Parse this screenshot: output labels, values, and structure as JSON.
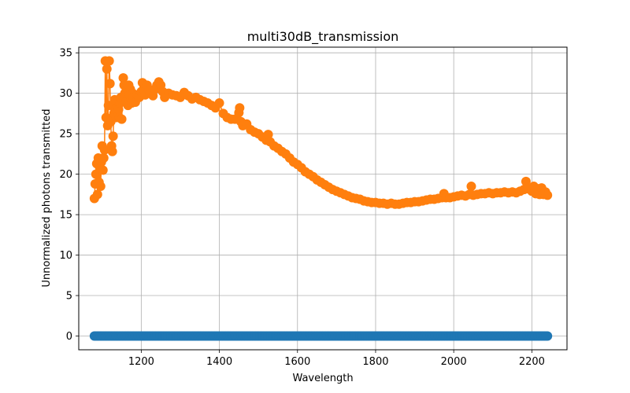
{
  "chart_data": {
    "type": "scatter",
    "title": "multi30dB_transmission",
    "xlabel": "Wavelength",
    "ylabel": "Unnormalized photons transmitted",
    "xlim": [
      1040,
      2290
    ],
    "ylim": [
      -1.7,
      35.7
    ],
    "xticks": [
      1200,
      1400,
      1600,
      1800,
      2000,
      2200
    ],
    "yticks": [
      0,
      5,
      10,
      15,
      20,
      25,
      30,
      35
    ],
    "grid": true,
    "colors": {
      "series_0": "#1f77b4",
      "series_1": "#ff7f0e"
    },
    "series": [
      {
        "x_range": [
          1080,
          2240
        ],
        "value": 0,
        "markers": true,
        "line": true
      },
      {
        "markers": true,
        "line": true,
        "points": [
          [
            1080,
            17.0
          ],
          [
            1082,
            18.8
          ],
          [
            1084,
            20.0
          ],
          [
            1086,
            21.3
          ],
          [
            1088,
            17.5
          ],
          [
            1090,
            22.0
          ],
          [
            1092,
            19.0
          ],
          [
            1094,
            20.7
          ],
          [
            1096,
            18.5
          ],
          [
            1098,
            21.5
          ],
          [
            1100,
            23.5
          ],
          [
            1102,
            20.5
          ],
          [
            1104,
            22.0
          ],
          [
            1106,
            23.0
          ],
          [
            1108,
            34.0
          ],
          [
            1110,
            27.0
          ],
          [
            1112,
            33.0
          ],
          [
            1114,
            26.0
          ],
          [
            1116,
            28.5
          ],
          [
            1118,
            34.0
          ],
          [
            1120,
            31.2
          ],
          [
            1122,
            26.5
          ],
          [
            1124,
            23.5
          ],
          [
            1126,
            22.8
          ],
          [
            1128,
            24.7
          ],
          [
            1130,
            27.5
          ],
          [
            1132,
            29.2
          ],
          [
            1134,
            28.0
          ],
          [
            1136,
            27.0
          ],
          [
            1138,
            28.5
          ],
          [
            1140,
            29.0
          ],
          [
            1142,
            28.0
          ],
          [
            1144,
            27.0
          ],
          [
            1146,
            28.8
          ],
          [
            1148,
            29.5
          ],
          [
            1150,
            26.8
          ],
          [
            1152,
            29.0
          ],
          [
            1154,
            31.9
          ],
          [
            1156,
            31.0
          ],
          [
            1158,
            30.0
          ],
          [
            1160,
            29.5
          ],
          [
            1162,
            29.0
          ],
          [
            1164,
            30.5
          ],
          [
            1166,
            28.5
          ],
          [
            1168,
            31.0
          ],
          [
            1170,
            29.8
          ],
          [
            1172,
            30.5
          ],
          [
            1174,
            29.2
          ],
          [
            1176,
            28.8
          ],
          [
            1178,
            30.0
          ],
          [
            1180,
            29.5
          ],
          [
            1185,
            28.9
          ],
          [
            1190,
            29.8
          ],
          [
            1195,
            29.5
          ],
          [
            1200,
            30.2
          ],
          [
            1203,
            31.3
          ],
          [
            1206,
            30.5
          ],
          [
            1210,
            29.8
          ],
          [
            1215,
            31.0
          ],
          [
            1220,
            30.4
          ],
          [
            1225,
            30.0
          ],
          [
            1230,
            29.7
          ],
          [
            1235,
            30.5
          ],
          [
            1240,
            31.0
          ],
          [
            1245,
            31.4
          ],
          [
            1250,
            31.0
          ],
          [
            1255,
            30.2
          ],
          [
            1260,
            29.5
          ],
          [
            1270,
            30.0
          ],
          [
            1280,
            29.8
          ],
          [
            1290,
            29.7
          ],
          [
            1300,
            29.5
          ],
          [
            1310,
            30.1
          ],
          [
            1320,
            29.7
          ],
          [
            1330,
            29.3
          ],
          [
            1340,
            29.5
          ],
          [
            1350,
            29.2
          ],
          [
            1360,
            29.0
          ],
          [
            1370,
            28.8
          ],
          [
            1380,
            28.5
          ],
          [
            1390,
            28.2
          ],
          [
            1400,
            28.8
          ],
          [
            1410,
            27.5
          ],
          [
            1420,
            27.0
          ],
          [
            1430,
            26.8
          ],
          [
            1440,
            26.8
          ],
          [
            1450,
            27.6
          ],
          [
            1452,
            28.2
          ],
          [
            1455,
            26.5
          ],
          [
            1460,
            26.0
          ],
          [
            1470,
            26.2
          ],
          [
            1480,
            25.5
          ],
          [
            1490,
            25.2
          ],
          [
            1500,
            25.0
          ],
          [
            1510,
            24.6
          ],
          [
            1520,
            24.2
          ],
          [
            1525,
            24.9
          ],
          [
            1530,
            24.0
          ],
          [
            1540,
            23.5
          ],
          [
            1550,
            23.2
          ],
          [
            1560,
            22.8
          ],
          [
            1570,
            22.5
          ],
          [
            1580,
            22.0
          ],
          [
            1590,
            21.5
          ],
          [
            1600,
            21.2
          ],
          [
            1610,
            20.8
          ],
          [
            1620,
            20.3
          ],
          [
            1630,
            20.0
          ],
          [
            1640,
            19.7
          ],
          [
            1650,
            19.3
          ],
          [
            1660,
            19.0
          ],
          [
            1670,
            18.7
          ],
          [
            1680,
            18.4
          ],
          [
            1690,
            18.1
          ],
          [
            1700,
            17.9
          ],
          [
            1710,
            17.7
          ],
          [
            1720,
            17.5
          ],
          [
            1730,
            17.3
          ],
          [
            1740,
            17.1
          ],
          [
            1750,
            17.0
          ],
          [
            1760,
            16.9
          ],
          [
            1770,
            16.7
          ],
          [
            1780,
            16.6
          ],
          [
            1790,
            16.5
          ],
          [
            1800,
            16.5
          ],
          [
            1810,
            16.4
          ],
          [
            1820,
            16.4
          ],
          [
            1830,
            16.3
          ],
          [
            1840,
            16.4
          ],
          [
            1850,
            16.3
          ],
          [
            1860,
            16.3
          ],
          [
            1870,
            16.4
          ],
          [
            1880,
            16.5
          ],
          [
            1890,
            16.5
          ],
          [
            1900,
            16.6
          ],
          [
            1910,
            16.6
          ],
          [
            1920,
            16.7
          ],
          [
            1930,
            16.8
          ],
          [
            1940,
            16.9
          ],
          [
            1950,
            16.9
          ],
          [
            1960,
            17.0
          ],
          [
            1970,
            17.1
          ],
          [
            1975,
            17.6
          ],
          [
            1980,
            17.1
          ],
          [
            1990,
            17.1
          ],
          [
            2000,
            17.2
          ],
          [
            2010,
            17.3
          ],
          [
            2020,
            17.4
          ],
          [
            2030,
            17.3
          ],
          [
            2040,
            17.5
          ],
          [
            2045,
            18.5
          ],
          [
            2050,
            17.4
          ],
          [
            2060,
            17.5
          ],
          [
            2070,
            17.6
          ],
          [
            2080,
            17.6
          ],
          [
            2090,
            17.7
          ],
          [
            2100,
            17.6
          ],
          [
            2110,
            17.7
          ],
          [
            2120,
            17.7
          ],
          [
            2130,
            17.8
          ],
          [
            2140,
            17.7
          ],
          [
            2150,
            17.8
          ],
          [
            2160,
            17.7
          ],
          [
            2170,
            17.9
          ],
          [
            2180,
            18.1
          ],
          [
            2185,
            19.1
          ],
          [
            2190,
            18.2
          ],
          [
            2200,
            17.9
          ],
          [
            2205,
            18.5
          ],
          [
            2210,
            17.6
          ],
          [
            2215,
            18.2
          ],
          [
            2220,
            17.5
          ],
          [
            2225,
            18.3
          ],
          [
            2230,
            17.5
          ],
          [
            2235,
            17.8
          ],
          [
            2240,
            17.4
          ]
        ]
      }
    ]
  }
}
